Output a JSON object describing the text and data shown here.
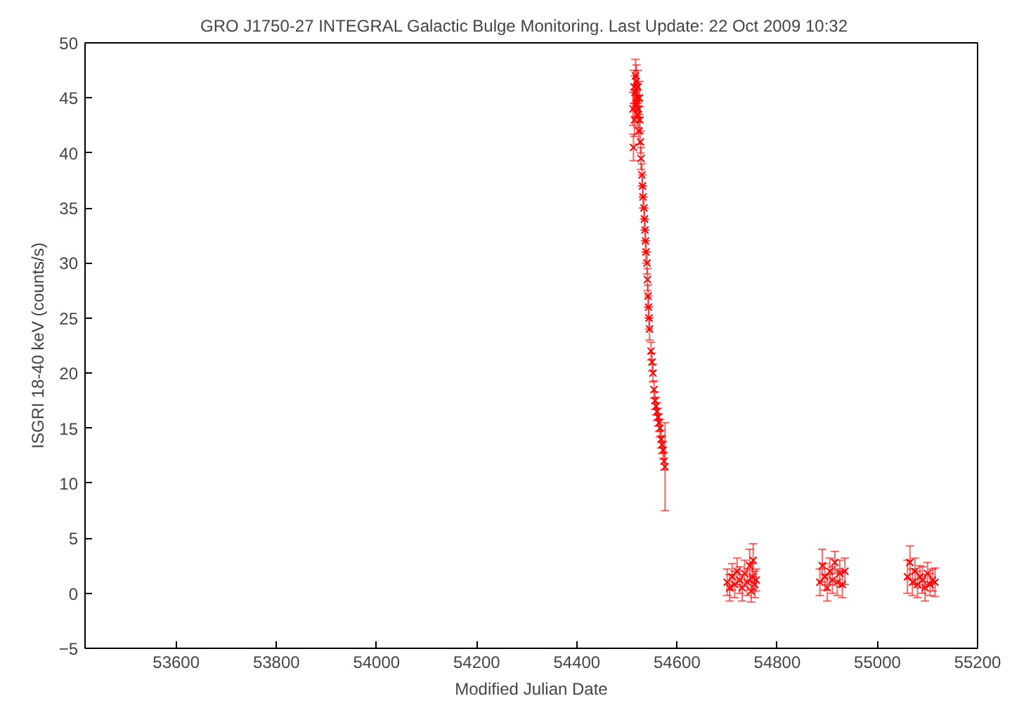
{
  "chart_data": {
    "type": "scatter",
    "title": "GRO J1750-27   INTEGRAL Galactic Bulge Monitoring.  Last Update: 22 Oct 2009 10:32",
    "xlabel": "Modified Julian Date",
    "ylabel": "ISGRI 18-40 keV (counts/s)",
    "marker": "cross",
    "grid": false,
    "xlim": [
      53418,
      55200
    ],
    "xticks": [
      53600,
      53800,
      54000,
      54200,
      54400,
      54600,
      54800,
      55000,
      55200
    ],
    "ylim": [
      -5,
      50
    ],
    "yticks": [
      -5,
      0,
      5,
      10,
      15,
      20,
      25,
      30,
      35,
      40,
      45,
      50
    ],
    "series": [
      {
        "color": "#ff0000",
        "x": [
          54512,
          54513,
          54514,
          54515,
          54516,
          54517,
          54518,
          54519,
          54520,
          54521,
          54522,
          54523,
          54524,
          54525,
          54526,
          54527,
          54528,
          54530,
          54531,
          54532,
          54534,
          54535,
          54536,
          54537,
          54538,
          54540,
          54541,
          54542,
          54543,
          54544,
          54545,
          54548,
          54550,
          54552,
          54554,
          54556,
          54558,
          54560,
          54562,
          54564,
          54566,
          54568,
          54570,
          54572,
          54574,
          54576,
          54700,
          54705,
          54710,
          54715,
          54720,
          54725,
          54730,
          54735,
          54740,
          54745,
          54748,
          54750,
          54752,
          54755,
          54758,
          54885,
          54890,
          54895,
          54900,
          54905,
          54910,
          54915,
          54920,
          54925,
          54930,
          54935,
          55060,
          55065,
          55070,
          55075,
          55080,
          55085,
          55090,
          55095,
          55100,
          55105,
          55110,
          55115
        ],
        "values": [
          44,
          40.5,
          46,
          43,
          45.5,
          47,
          44.5,
          46.5,
          45,
          43.5,
          46,
          44,
          42,
          45,
          43,
          41,
          39.5,
          38,
          37,
          36,
          35,
          34,
          33,
          32,
          31,
          30,
          28.5,
          27,
          26,
          25,
          24,
          22,
          21,
          20,
          18.5,
          17.5,
          17,
          16.5,
          16,
          15.5,
          15,
          14,
          13.5,
          13,
          12,
          11.5,
          1,
          0.5,
          1.5,
          0.8,
          2,
          1.2,
          0.5,
          1.8,
          1,
          2.5,
          0.2,
          1.5,
          3,
          0.8,
          1.2,
          1,
          2.5,
          1.5,
          0.5,
          2,
          1.2,
          2.8,
          1,
          1.8,
          0.8,
          2,
          1.5,
          2.8,
          1,
          2,
          0.8,
          1.5,
          1.2,
          0.5,
          1.8,
          0.8,
          1.2,
          1
        ],
        "errors": [
          1.5,
          1.2,
          1.5,
          1.5,
          1.5,
          1.5,
          1.2,
          1.5,
          1.2,
          1.2,
          1.5,
          1.2,
          1.2,
          1.5,
          1.2,
          1,
          1,
          1,
          1,
          1,
          1,
          1,
          1,
          1,
          1,
          1,
          1,
          1,
          1,
          1,
          1,
          0.8,
          0.8,
          0.8,
          0.8,
          0.8,
          0.8,
          0.8,
          0.8,
          0.8,
          0.8,
          0.8,
          0.8,
          0.8,
          0.8,
          4,
          1.2,
          1.2,
          1.2,
          1.2,
          1.2,
          1.2,
          1.2,
          1.2,
          1.2,
          1.5,
          1,
          1.2,
          1.5,
          1.2,
          1,
          1.2,
          1.5,
          1.2,
          1.2,
          1.2,
          1.2,
          1,
          1.2,
          1.2,
          1.2,
          1.2,
          1.5,
          1.5,
          1.2,
          1.2,
          1.2,
          1,
          1.2,
          1.2,
          1,
          1,
          1,
          1.3
        ]
      }
    ]
  }
}
